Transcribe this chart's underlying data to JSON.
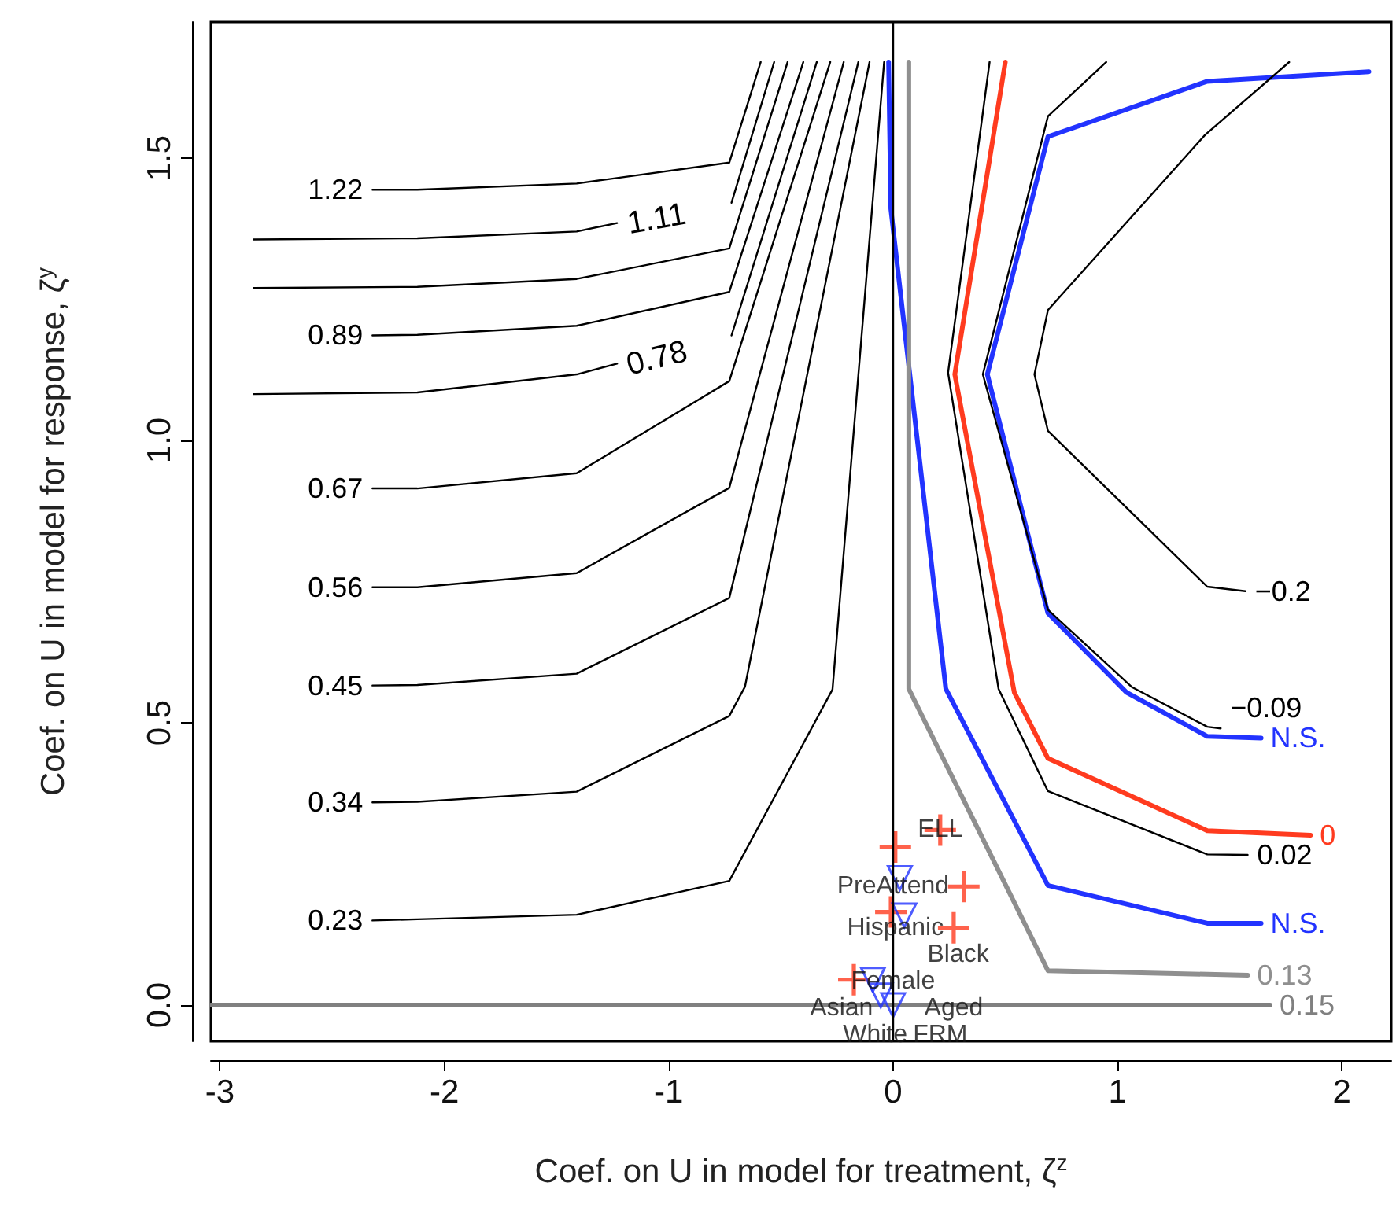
{
  "chart_data": {
    "type": "line",
    "xlabel": "Coef. on U in model for treatment, ζ$^{z}$",
    "ylabel": "Coef. on U in model for response, ζ$^{y}$",
    "xlim": [
      -3.04,
      2.22
    ],
    "ylim": [
      -0.064,
      1.741
    ],
    "xticks": [
      -3,
      -2,
      -1,
      0,
      1,
      2
    ],
    "yticks": [
      {
        "value": 0,
        "label": "0.0"
      },
      0.5,
      {
        "value": 1,
        "label": "1.0"
      },
      1.5
    ],
    "ref_lines": [
      {
        "axis": "x",
        "value": 0,
        "color": "#000000"
      }
    ],
    "series": [
      {
        "name": "1.22",
        "color": "#000000",
        "x": [
          -0.59,
          -0.73,
          -1.41,
          -2.12,
          -2.32
        ],
        "values": [
          1.67,
          1.492,
          1.455,
          1.444,
          1.444
        ]
      },
      {
        "name": "1.11",
        "color": "#000000",
        "x": [
          -0.53,
          -0.72,
          -0.975,
          -1.23,
          -1.41,
          -2.12,
          -2.85
        ],
        "values": [
          1.67,
          1.421,
          null,
          1.385,
          1.37,
          1.358,
          1.356
        ]
      },
      {
        "color": "#000000",
        "x": [
          -0.47,
          -0.73,
          -1.41,
          -2.12,
          -2.85
        ],
        "values": [
          1.67,
          1.34,
          1.286,
          1.272,
          1.27
        ]
      },
      {
        "name": "0.89",
        "color": "#000000",
        "x": [
          -0.4,
          -0.73,
          -1.41,
          -2.12,
          -2.32
        ],
        "values": [
          1.67,
          1.263,
          1.203,
          1.187,
          1.186
        ]
      },
      {
        "name": "0.78",
        "color": "#000000",
        "x": [
          -0.34,
          -0.72,
          -0.975,
          -1.23,
          -1.41,
          -2.12,
          -2.85
        ],
        "values": [
          1.67,
          1.186,
          null,
          1.136,
          1.117,
          1.085,
          1.082
        ]
      },
      {
        "name": "0.67",
        "color": "#000000",
        "x": [
          -0.28,
          -0.73,
          -1.41,
          -2.12,
          -2.32
        ],
        "values": [
          1.67,
          1.105,
          0.942,
          0.915,
          0.915
        ]
      },
      {
        "name": "0.56",
        "color": "#000000",
        "x": [
          -0.22,
          -0.73,
          -1.41,
          -2.12,
          -2.32
        ],
        "values": [
          1.67,
          0.916,
          0.765,
          0.74,
          0.74
        ]
      },
      {
        "name": "0.45",
        "color": "#000000",
        "x": [
          -0.155,
          -0.73,
          -1.41,
          -2.12,
          -2.32
        ],
        "values": [
          1.67,
          0.721,
          0.587,
          0.567,
          0.566
        ]
      },
      {
        "name": "0.34",
        "color": "#000000",
        "x": [
          -0.105,
          -0.66,
          -0.73,
          -1.41,
          -2.12,
          -2.32
        ],
        "values": [
          1.67,
          0.564,
          0.512,
          0.378,
          0.36,
          0.359
        ]
      },
      {
        "name": "0.23",
        "color": "#000000",
        "x": [
          -0.04,
          -0.27,
          -0.73,
          -1.41,
          -2.12,
          -2.32
        ],
        "values": [
          1.67,
          0.559,
          0.22,
          0.16,
          0.152,
          0.15
        ]
      },
      {
        "name": "N.S.",
        "color": "#2233ff",
        "x": [
          -0.02,
          -0.01,
          0.235,
          0.69,
          1.4,
          1.64
        ],
        "values": [
          1.67,
          1.41,
          0.56,
          0.212,
          0.145,
          0.145
        ]
      },
      {
        "name": "0.13",
        "color": "#8f8f8f",
        "x": [
          0.07,
          0.07,
          0.69,
          1.58
        ],
        "values": [
          1.67,
          0.56,
          0.061,
          0.053
        ]
      },
      {
        "name": "0.02",
        "color": "#000000",
        "x": [
          0.43,
          0.245,
          0.47,
          0.69,
          1.4,
          1.58
        ],
        "values": [
          1.67,
          1.12,
          0.56,
          0.379,
          0.267,
          0.266
        ]
      },
      {
        "name": "0",
        "color": "#ff3b1f",
        "x": [
          0.5,
          0.275,
          0.54,
          0.69,
          1.4,
          1.86
        ],
        "values": [
          1.67,
          1.117,
          0.554,
          0.437,
          0.309,
          0.301
        ]
      },
      {
        "name": "N.S.",
        "color": "#2233ff",
        "x": [
          2.12,
          1.4,
          0.69,
          0.42,
          0.69,
          1.04,
          1.4,
          1.64
        ],
        "values": [
          1.653,
          1.636,
          1.538,
          1.117,
          0.694,
          0.554,
          0.476,
          0.473
        ]
      },
      {
        "name": "−0.09",
        "color": "#000000",
        "x": [
          0.95,
          0.69,
          0.4,
          0.69,
          1.065,
          1.4,
          1.46
        ],
        "values": [
          1.67,
          1.574,
          1.117,
          0.7,
          0.563,
          0.493,
          0.49
        ]
      },
      {
        "name": "−0.2",
        "color": "#000000",
        "x": [
          1.765,
          1.39,
          0.69,
          0.63,
          0.69,
          1.4,
          1.57
        ],
        "values": [
          1.67,
          1.541,
          1.231,
          1.117,
          1.017,
          0.741,
          0.733
        ]
      },
      {
        "name": "0.15",
        "color": "#808080",
        "x": [
          -3.04,
          1.68
        ],
        "values": [
          0,
          0
        ]
      },
      {
        "type": "scatter",
        "marker": "cross",
        "color": "#ff3b1f",
        "x": [
          0.01,
          0.21,
          0.315,
          0.27,
          -0.175,
          -0.01
        ],
        "values": [
          0.28,
          0.31,
          0.21,
          0.137,
          0.045,
          0.165
        ]
      },
      {
        "type": "scatter",
        "marker": "triangle",
        "color": "#2233ff",
        "x": [
          0.03,
          0.05,
          -0.09,
          -0.055,
          0.0
        ],
        "values": [
          0.225,
          0.159,
          0.045,
          0.017,
          0.0
        ]
      }
    ],
    "annotations": [
      {
        "text": "ELL",
        "x": 0.21,
        "y": 0.31
      },
      {
        "text": "PreAttend",
        "x": 0.0,
        "y": 0.21
      },
      {
        "text": "Hispanic",
        "x": 0.01,
        "y": 0.137
      },
      {
        "text": "Black",
        "x": 0.29,
        "y": 0.128
      },
      {
        "text": "Female",
        "x": 0.0,
        "y": 0.086
      },
      {
        "text": "Aged",
        "x": 0.27,
        "y": 0.137
      },
      {
        "text": "FRM",
        "x": 0.21,
        "y": -0.011
      },
      {
        "text": "Asian",
        "x": -0.23,
        "y": 0
      },
      {
        "text": "White",
        "x": -0.08,
        "y": 0
      }
    ]
  }
}
